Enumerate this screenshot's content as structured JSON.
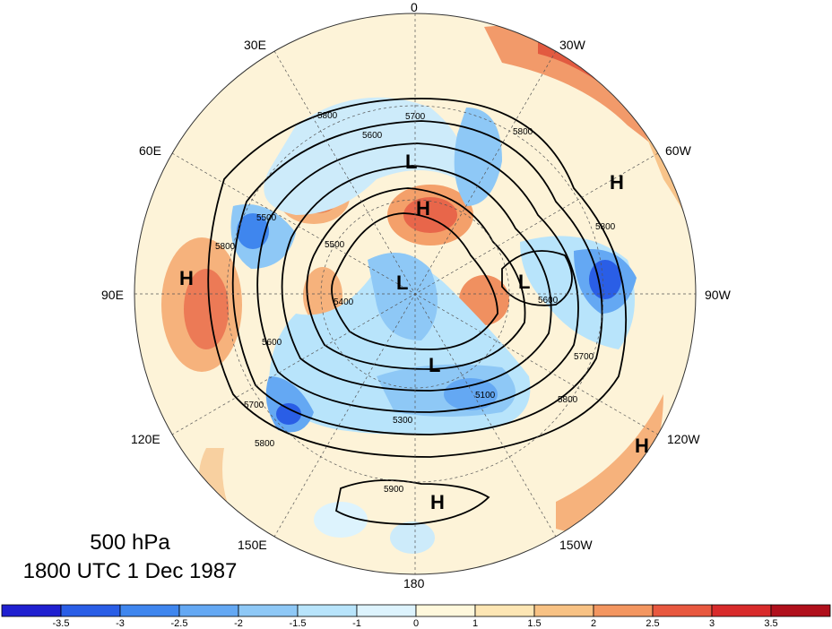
{
  "title": {
    "level": "500 hPa",
    "time": "1800 UTC 1 Dec 1987"
  },
  "longitude_labels": [
    "0",
    "30W",
    "60W",
    "90W",
    "120W",
    "150W",
    "180",
    "150E",
    "120E",
    "90E",
    "60E",
    "30E"
  ],
  "contour_labels": [
    "5800",
    "5700",
    "5600",
    "5500",
    "5900",
    "5400",
    "5300",
    "5100",
    "5200"
  ],
  "pressure_centers": [
    "L",
    "H"
  ],
  "colorbar": {
    "labels": [
      "-3.5",
      "-3",
      "-2.5",
      "-2",
      "-1.5",
      "-1",
      "0",
      "1",
      "1.5",
      "2",
      "2.5",
      "3",
      "3.5"
    ],
    "colors": [
      "#2020d0",
      "#2a5ee6",
      "#3f86ee",
      "#64a8f3",
      "#8ec8f6",
      "#b8e4fb",
      "#ddf3fd",
      "#fff8dc",
      "#fde6b4",
      "#f8c284",
      "#f39660",
      "#e8583f",
      "#d82b2b",
      "#b0101c"
    ]
  }
}
